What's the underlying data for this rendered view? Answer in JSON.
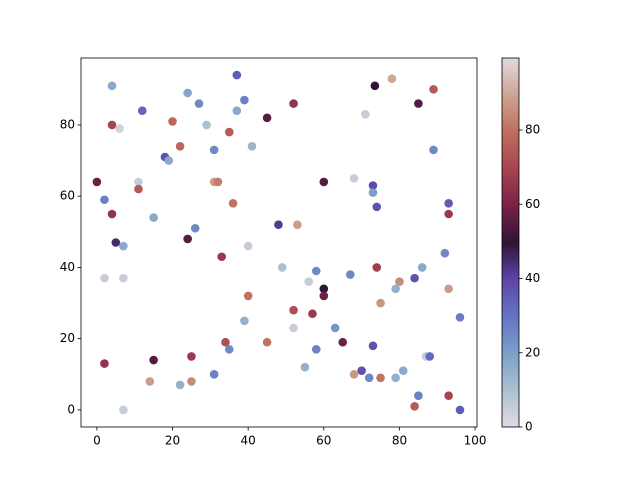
{
  "chart_data": {
    "type": "scatter",
    "colormap": "twilight",
    "x": [
      4,
      37,
      73.5,
      78,
      24,
      27,
      39,
      52,
      85,
      89,
      12,
      37,
      71,
      45,
      4,
      6,
      20,
      29,
      35,
      22,
      31,
      41,
      89,
      18,
      19,
      0,
      11,
      31,
      32,
      60,
      68,
      73,
      11,
      73,
      2,
      36,
      74,
      93,
      4,
      15,
      93,
      53,
      26,
      48,
      5,
      7,
      24,
      40,
      33,
      92,
      2,
      7,
      49,
      58,
      74,
      86,
      67,
      84,
      56,
      80,
      93,
      79,
      60,
      60,
      40,
      75,
      52,
      57,
      96,
      39,
      52,
      63,
      34,
      45,
      65,
      35,
      58,
      73,
      15,
      25,
      87,
      88,
      2,
      55,
      70,
      81,
      31,
      68,
      72,
      75,
      79,
      14,
      25,
      22,
      85,
      93,
      84,
      7,
      96
    ],
    "y": [
      91,
      94,
      91,
      93,
      89,
      86,
      87,
      86,
      86,
      90,
      84,
      84,
      83,
      82,
      80,
      79,
      81,
      80,
      78,
      74,
      73,
      74,
      73,
      71,
      70,
      64,
      64,
      64,
      64,
      64,
      65,
      63,
      62,
      61,
      59,
      58,
      57,
      58,
      55,
      54,
      55,
      52,
      51,
      52,
      47,
      46,
      48,
      46,
      43,
      44,
      37,
      37,
      40,
      39,
      40,
      40,
      38,
      37,
      36,
      36,
      34,
      34,
      34,
      32,
      32,
      30,
      28,
      27,
      26,
      25,
      23,
      23,
      19,
      19,
      19,
      17,
      17,
      18,
      14,
      15,
      15,
      15,
      13,
      12,
      11,
      11,
      10,
      10,
      9,
      9,
      9,
      8,
      8,
      7,
      4,
      4,
      1,
      0,
      0
    ],
    "c": [
      17,
      35,
      50,
      90,
      18,
      25,
      27,
      65,
      55,
      75,
      33,
      17,
      5,
      55,
      70,
      3,
      78,
      10,
      75,
      78,
      25,
      13,
      25,
      37,
      17,
      58,
      5,
      88,
      82,
      55,
      5,
      38,
      75,
      20,
      27,
      80,
      37,
      35,
      65,
      17,
      67,
      88,
      25,
      42,
      45,
      17,
      55,
      5,
      67,
      25,
      5,
      5,
      10,
      25,
      68,
      17,
      25,
      37,
      5,
      85,
      88,
      15,
      50,
      58,
      80,
      87,
      72,
      67,
      28,
      15,
      5,
      22,
      72,
      80,
      58,
      25,
      27,
      37,
      55,
      67,
      5,
      32,
      65,
      15,
      37,
      17,
      27,
      87,
      25,
      80,
      15,
      88,
      85,
      15,
      27,
      70,
      75,
      5,
      35
    ],
    "xlim": [
      -4.2,
      100.5
    ],
    "ylim": [
      -4.8,
      98.8
    ],
    "xticks": [
      0,
      20,
      40,
      60,
      80,
      100
    ],
    "yticks": [
      0,
      20,
      40,
      60,
      80
    ],
    "clim": [
      0,
      99.4
    ],
    "cticks": [
      0,
      20,
      40,
      60,
      80
    ]
  }
}
